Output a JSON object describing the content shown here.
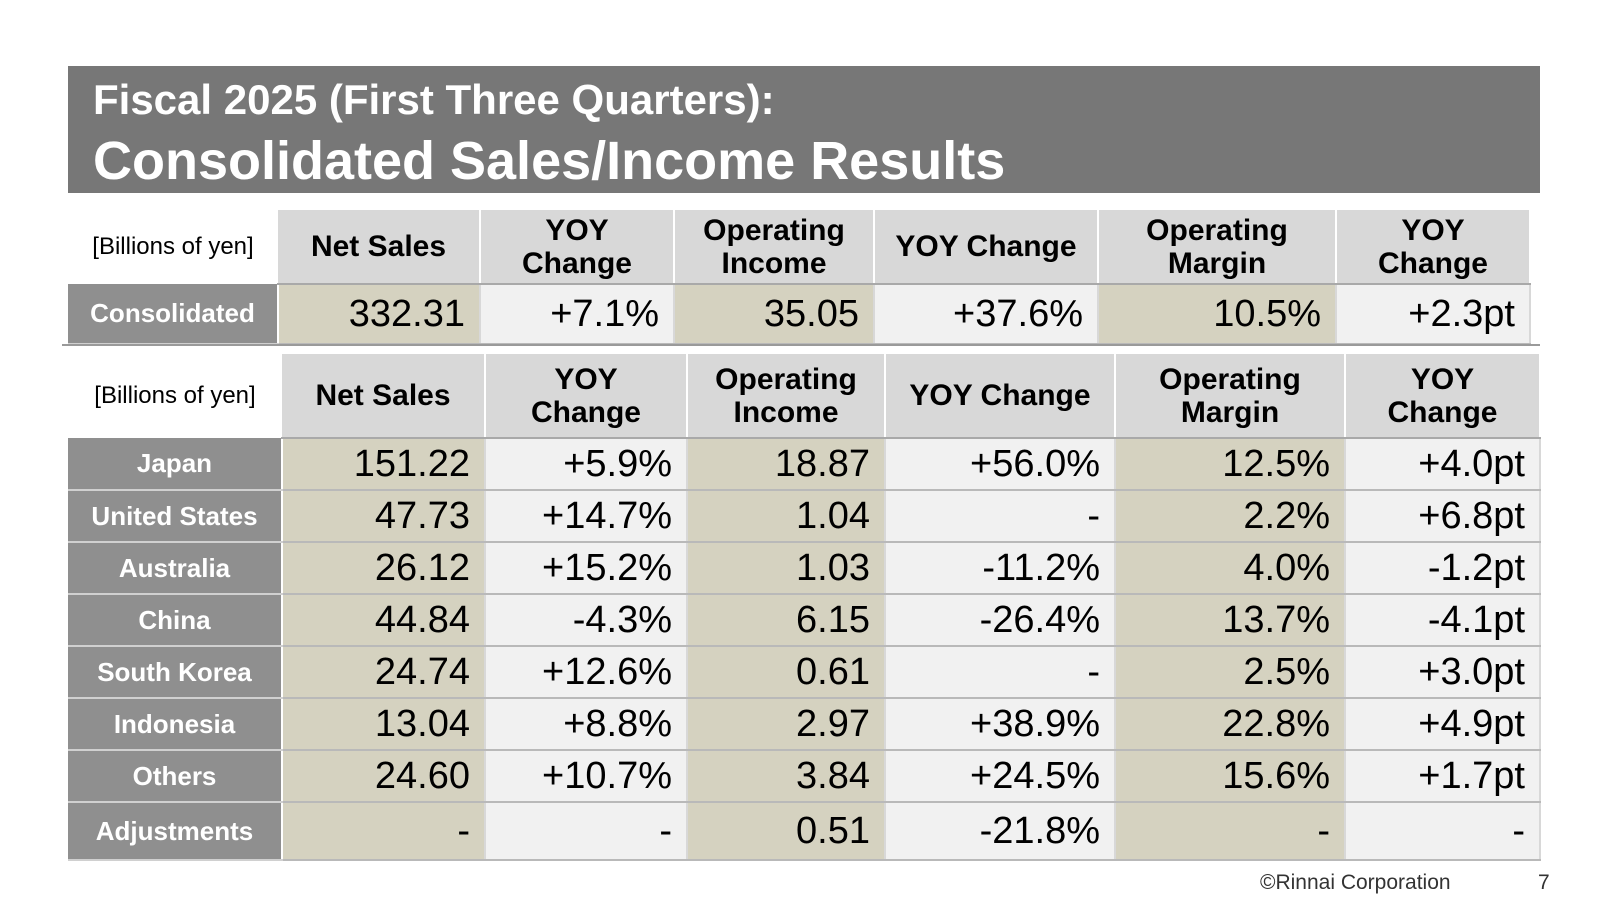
{
  "title": {
    "line1": "Fiscal 2025 (First Three Quarters):",
    "line2": "Consolidated Sales/Income Results"
  },
  "columns": [
    "Net Sales",
    "YOY Change",
    "Operating Income",
    "YOY Change",
    "Operating Margin",
    "YOY Change"
  ],
  "consolidated_table": {
    "unit_label": "[Billions of yen]",
    "headers": [
      "Net Sales",
      "YOY\nChange",
      "Operating\nIncome",
      "YOY Change",
      "Operating\nMargin",
      "YOY\nChange"
    ],
    "rows": [
      {
        "label": "Consolidated",
        "values": [
          "332.31",
          "+7.1%",
          "35.05",
          "+37.6%",
          "10.5%",
          "+2.3pt"
        ]
      }
    ]
  },
  "region_table": {
    "unit_label": "[Billions of yen]",
    "headers": [
      "Net Sales",
      "YOY\nChange",
      "Operating\nIncome",
      "YOY Change",
      "Operating\nMargin",
      "YOY\nChange"
    ],
    "rows": [
      {
        "label": "Japan",
        "values": [
          "151.22",
          "+5.9%",
          "18.87",
          "+56.0%",
          "12.5%",
          "+4.0pt"
        ]
      },
      {
        "label": "United States",
        "values": [
          "47.73",
          "+14.7%",
          "1.04",
          "-",
          "2.2%",
          "+6.8pt"
        ]
      },
      {
        "label": "Australia",
        "values": [
          "26.12",
          "+15.2%",
          "1.03",
          "-11.2%",
          "4.0%",
          "-1.2pt"
        ]
      },
      {
        "label": "China",
        "values": [
          "44.84",
          "-4.3%",
          "6.15",
          "-26.4%",
          "13.7%",
          "-4.1pt"
        ]
      },
      {
        "label": "South Korea",
        "values": [
          "24.74",
          "+12.6%",
          "0.61",
          "-",
          "2.5%",
          "+3.0pt"
        ]
      },
      {
        "label": "Indonesia",
        "values": [
          "13.04",
          "+8.8%",
          "2.97",
          "+38.9%",
          "22.8%",
          "+4.9pt"
        ]
      },
      {
        "label": "Others",
        "values": [
          "24.60",
          "+10.7%",
          "3.84",
          "+24.5%",
          "15.6%",
          "+1.7pt"
        ]
      },
      {
        "label": "Adjustments",
        "values": [
          "-",
          "-",
          "0.51",
          "-21.8%",
          "-",
          "-"
        ]
      }
    ]
  },
  "footer": {
    "copyright": "©Rinnai Corporation",
    "page_number": "7"
  },
  "colors": {
    "title_band": "#777777",
    "row_label": "#8f8f8f",
    "header": "#d8d8d8",
    "value_tan": "#d5d2c0",
    "value_light": "#f1f1f1"
  }
}
